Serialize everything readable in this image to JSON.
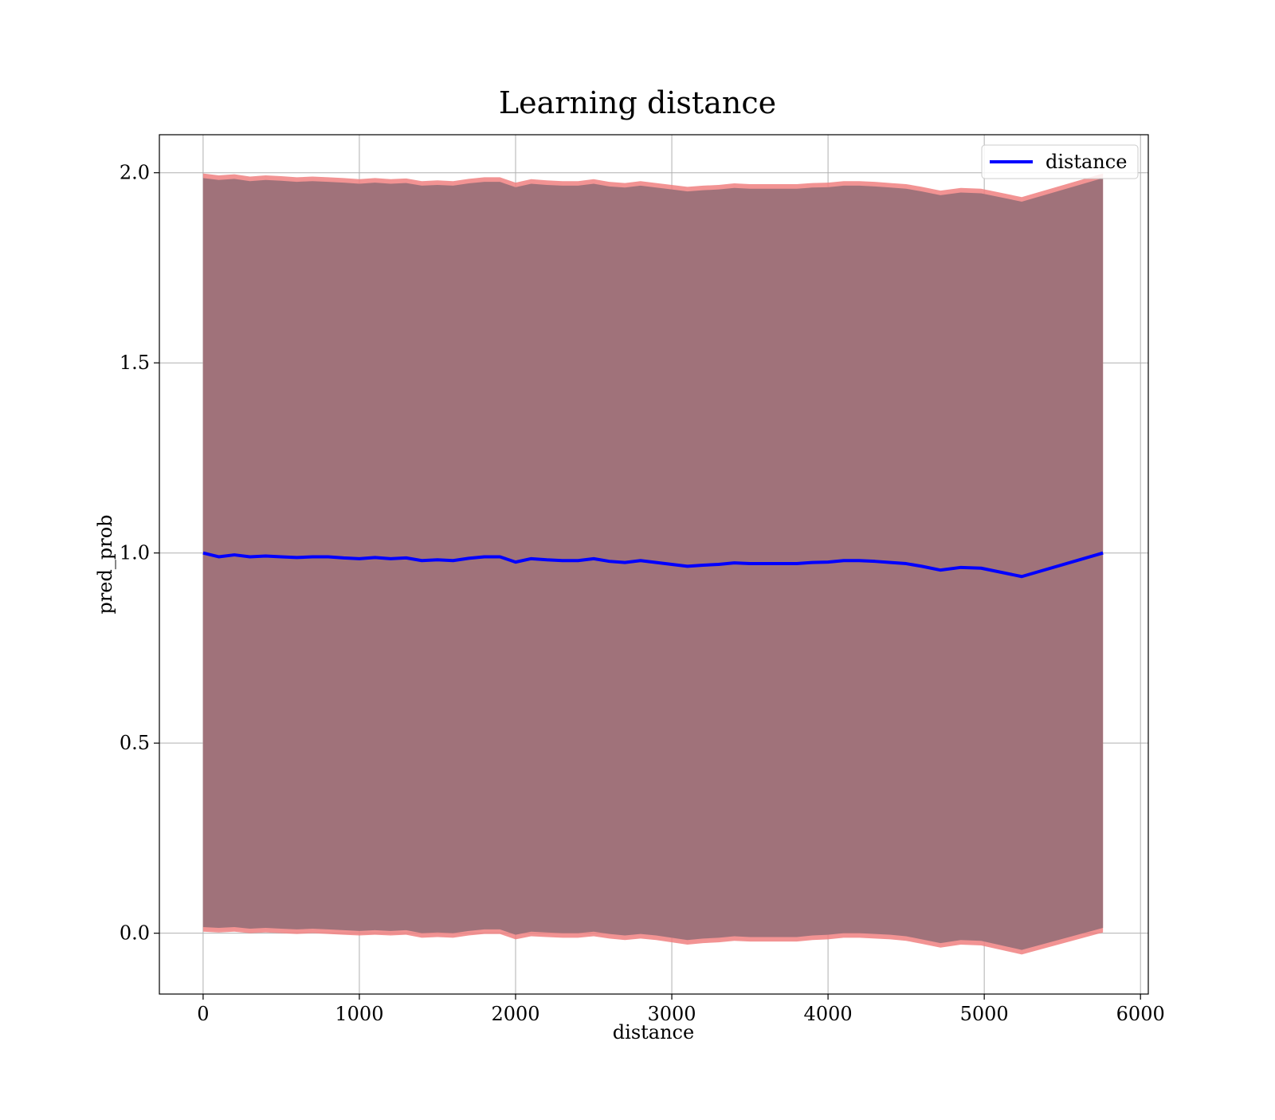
{
  "chart_data": {
    "type": "line",
    "title": "Learning distance",
    "xlabel": "distance",
    "ylabel": "pred_prob",
    "xlim": [
      -280,
      6050
    ],
    "ylim": [
      -0.16,
      2.1
    ],
    "xticks": [
      0,
      1000,
      2000,
      3000,
      4000,
      5000,
      6000
    ],
    "xtick_labels": [
      "0",
      "1000",
      "2000",
      "3000",
      "4000",
      "5000",
      "6000"
    ],
    "yticks": [
      0.0,
      0.5,
      1.0,
      1.5,
      2.0
    ],
    "ytick_labels": [
      "0.0",
      "0.5",
      "1.0",
      "1.5",
      "2.0"
    ],
    "grid": true,
    "legend_position": "upper-right",
    "series": [
      {
        "name": "distance",
        "color": "#0000ff",
        "x": [
          0,
          100,
          200,
          300,
          400,
          500,
          600,
          700,
          800,
          900,
          1000,
          1100,
          1200,
          1300,
          1400,
          1500,
          1600,
          1700,
          1800,
          1900,
          2000,
          2100,
          2200,
          2300,
          2400,
          2500,
          2600,
          2700,
          2800,
          2900,
          3000,
          3100,
          3200,
          3300,
          3400,
          3500,
          3600,
          3700,
          3800,
          3900,
          4000,
          4100,
          4200,
          4300,
          4400,
          4500,
          4600,
          4720,
          4850,
          4980,
          5240,
          5760
        ],
        "y": [
          1.0,
          0.99,
          0.995,
          0.99,
          0.992,
          0.99,
          0.988,
          0.99,
          0.99,
          0.987,
          0.985,
          0.988,
          0.985,
          0.987,
          0.98,
          0.982,
          0.98,
          0.986,
          0.99,
          0.99,
          0.976,
          0.985,
          0.982,
          0.98,
          0.98,
          0.985,
          0.978,
          0.975,
          0.98,
          0.975,
          0.97,
          0.965,
          0.968,
          0.97,
          0.974,
          0.972,
          0.972,
          0.972,
          0.972,
          0.975,
          0.976,
          0.98,
          0.98,
          0.978,
          0.975,
          0.972,
          0.965,
          0.955,
          0.962,
          0.96,
          0.938,
          1.0
        ],
        "upper": [
          1.99,
          1.985,
          1.988,
          1.982,
          1.985,
          1.983,
          1.98,
          1.982,
          1.98,
          1.978,
          1.975,
          1.978,
          1.975,
          1.977,
          1.97,
          1.972,
          1.97,
          1.976,
          1.98,
          1.98,
          1.966,
          1.975,
          1.972,
          1.97,
          1.97,
          1.975,
          1.968,
          1.965,
          1.97,
          1.965,
          1.96,
          1.955,
          1.958,
          1.96,
          1.964,
          1.962,
          1.962,
          1.962,
          1.962,
          1.965,
          1.966,
          1.97,
          1.97,
          1.968,
          1.965,
          1.962,
          1.955,
          1.945,
          1.952,
          1.95,
          1.928,
          1.99
        ],
        "lower": [
          0.012,
          0.01,
          0.012,
          0.008,
          0.01,
          0.008,
          0.006,
          0.008,
          0.006,
          0.004,
          0.002,
          0.004,
          0.002,
          0.004,
          -0.004,
          -0.002,
          -0.004,
          0.002,
          0.006,
          0.006,
          -0.008,
          0.0,
          -0.002,
          -0.004,
          -0.004,
          0.0,
          -0.006,
          -0.01,
          -0.006,
          -0.01,
          -0.016,
          -0.022,
          -0.018,
          -0.016,
          -0.012,
          -0.014,
          -0.014,
          -0.014,
          -0.014,
          -0.01,
          -0.008,
          -0.004,
          -0.004,
          -0.006,
          -0.008,
          -0.012,
          -0.02,
          -0.03,
          -0.022,
          -0.024,
          -0.048,
          0.01
        ],
        "band_colors": {
          "outer": "#f08080",
          "inner": "#a0727a"
        }
      }
    ]
  }
}
